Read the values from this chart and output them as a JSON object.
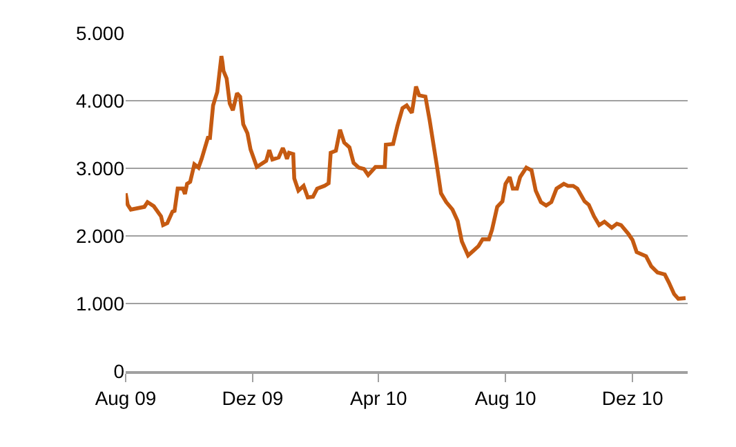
{
  "chart_data": {
    "type": "line",
    "x": [
      "2009-08-01",
      "2009-08-03",
      "2009-08-06",
      "2009-08-19",
      "2009-08-22",
      "2009-08-28",
      "2009-09-04",
      "2009-09-06",
      "2009-09-10",
      "2009-09-15",
      "2009-09-17",
      "2009-09-20",
      "2009-09-25",
      "2009-09-27",
      "2009-09-29",
      "2009-10-02",
      "2009-10-06",
      "2009-10-10",
      "2009-10-13",
      "2009-10-19",
      "2009-10-21",
      "2009-10-24",
      "2009-10-28",
      "2009-11-01",
      "2009-11-02",
      "2009-11-03",
      "2009-11-06",
      "2009-11-09",
      "2009-11-12",
      "2009-11-16",
      "2009-11-19",
      "2009-11-22",
      "2009-11-26",
      "2009-11-29",
      "2009-12-05",
      "2009-12-14",
      "2009-12-17",
      "2009-12-20",
      "2009-12-26",
      "2009-12-30",
      "2010-01-01",
      "2010-01-03",
      "2010-01-05",
      "2010-01-09",
      "2010-01-10",
      "2010-01-14",
      "2010-01-19",
      "2010-01-23",
      "2010-01-28",
      "2010-02-01",
      "2010-02-08",
      "2010-02-12",
      "2010-02-14",
      "2010-02-19",
      "2010-02-23",
      "2010-02-27",
      "2010-03-04",
      "2010-03-08",
      "2010-03-13",
      "2010-03-18",
      "2010-03-22",
      "2010-03-29",
      "2010-04-07",
      "2010-04-08",
      "2010-04-15",
      "2010-04-19",
      "2010-04-24",
      "2010-04-28",
      "2010-05-03",
      "2010-05-07",
      "2010-05-10",
      "2010-05-16",
      "2010-05-20",
      "2010-05-27",
      "2010-05-31",
      "2010-06-05",
      "2010-06-11",
      "2010-06-16",
      "2010-06-20",
      "2010-06-26",
      "2010-07-01",
      "2010-07-06",
      "2010-07-10",
      "2010-07-16",
      "2010-07-19",
      "2010-07-24",
      "2010-07-29",
      "2010-08-01",
      "2010-08-05",
      "2010-08-08",
      "2010-08-12",
      "2010-08-15",
      "2010-08-21",
      "2010-08-26",
      "2010-08-30",
      "2010-09-04",
      "2010-09-09",
      "2010-09-14",
      "2010-09-19",
      "2010-09-26",
      "2010-09-30",
      "2010-10-05",
      "2010-10-09",
      "2010-10-16",
      "2010-10-20",
      "2010-10-25",
      "2010-10-30",
      "2010-11-04",
      "2010-11-11",
      "2010-11-16",
      "2010-11-20",
      "2010-11-27",
      "2010-12-01",
      "2010-12-05",
      "2010-12-14",
      "2010-12-19",
      "2010-12-25",
      "2011-01-01",
      "2011-01-05",
      "2011-01-10",
      "2011-01-14",
      "2011-01-21"
    ],
    "series": [
      {
        "color": "#c55a11",
        "values": [
          2630,
          2460,
          2390,
          2430,
          2500,
          2440,
          2290,
          2160,
          2190,
          2360,
          2370,
          2700,
          2700,
          2620,
          2770,
          2800,
          3060,
          3010,
          3140,
          3450,
          3450,
          3930,
          4130,
          4660,
          4570,
          4440,
          4330,
          3960,
          3860,
          4110,
          4060,
          3650,
          3520,
          3280,
          3020,
          3110,
          3270,
          3130,
          3160,
          3300,
          3230,
          3140,
          3230,
          3210,
          2850,
          2670,
          2740,
          2570,
          2580,
          2700,
          2740,
          2780,
          3230,
          3260,
          3570,
          3380,
          3310,
          3080,
          3010,
          2990,
          2900,
          3020,
          3020,
          3350,
          3360,
          3620,
          3890,
          3930,
          3820,
          4210,
          4080,
          4060,
          3720,
          3040,
          2630,
          2500,
          2390,
          2220,
          1920,
          1710,
          1780,
          1850,
          1950,
          1950,
          2090,
          2430,
          2510,
          2770,
          2870,
          2700,
          2700,
          2870,
          3010,
          2970,
          2670,
          2500,
          2450,
          2500,
          2700,
          2770,
          2740,
          2740,
          2700,
          2510,
          2460,
          2290,
          2160,
          2210,
          2120,
          2180,
          2160,
          2030,
          1940,
          1760,
          1700,
          1550,
          1460,
          1430,
          1310,
          1140,
          1070,
          1080
        ]
      }
    ],
    "xlim": [
      "2009-08-01",
      "2011-01-23"
    ],
    "xticks": [
      {
        "value": "2009-08-01",
        "label": "Aug 09"
      },
      {
        "value": "2009-12-01",
        "label": "Dez 09"
      },
      {
        "value": "2010-04-01",
        "label": "Apr 10"
      },
      {
        "value": "2010-08-01",
        "label": "Aug 10"
      },
      {
        "value": "2010-12-01",
        "label": "Dez 10"
      }
    ],
    "ylim": [
      0,
      5000
    ],
    "yticks": [
      {
        "value": 0,
        "label": "0"
      },
      {
        "value": 1000,
        "label": "1.000"
      },
      {
        "value": 2000,
        "label": "2.000"
      },
      {
        "value": 3000,
        "label": "3.000"
      },
      {
        "value": 4000,
        "label": "4.000"
      },
      {
        "value": 5000,
        "label": "5.000"
      }
    ],
    "grid": "y",
    "legend": false,
    "marker": "none",
    "line_style": "solid"
  }
}
